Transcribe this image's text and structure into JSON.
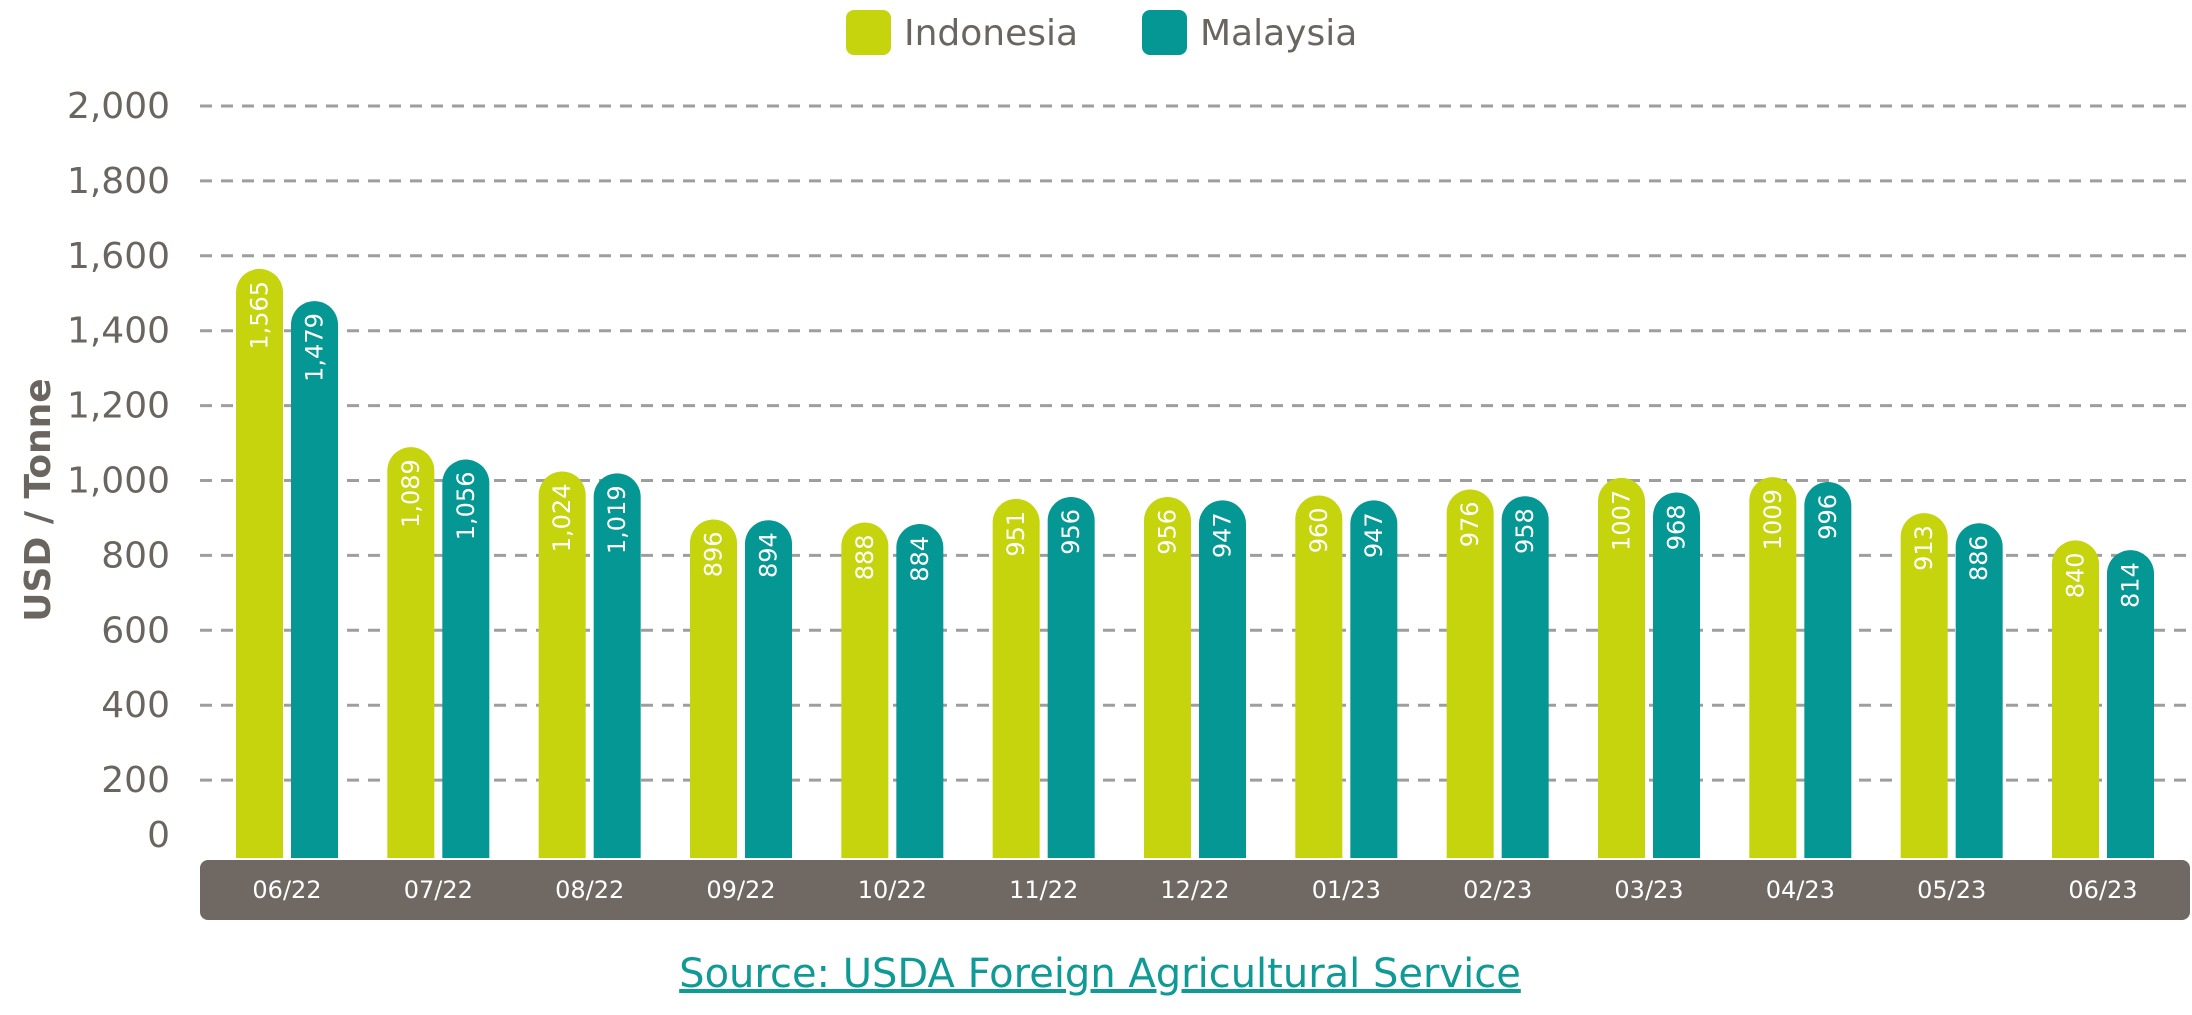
{
  "chart_data": {
    "type": "bar",
    "categories": [
      "06/22",
      "07/22",
      "08/22",
      "09/22",
      "10/22",
      "11/22",
      "12/22",
      "01/23",
      "02/23",
      "03/23",
      "04/23",
      "05/23",
      "06/23"
    ],
    "series": [
      {
        "name": "Indonesia",
        "color": "#c5d40d",
        "values": [
          1565,
          1089,
          1024,
          896,
          888,
          951,
          956,
          960,
          976,
          1007,
          1009,
          913,
          840
        ],
        "labels": [
          "1,565",
          "1,089",
          "1,024",
          "896",
          "888",
          "951",
          "956",
          "960",
          "976",
          "1007",
          "1009",
          "913",
          "840"
        ]
      },
      {
        "name": "Malaysia",
        "color": "#059793",
        "values": [
          1479,
          1056,
          1019,
          894,
          884,
          956,
          947,
          947,
          958,
          968,
          996,
          886,
          814
        ],
        "labels": [
          "1,479",
          "1,056",
          "1,019",
          "894",
          "884",
          "956",
          "947",
          "947",
          "958",
          "968",
          "996",
          "886",
          "814"
        ]
      }
    ],
    "ylabel": "USD / Tonne",
    "ylim": [
      0,
      2000
    ],
    "yticks": [
      0,
      200,
      400,
      600,
      800,
      1000,
      1200,
      1400,
      1600,
      1800,
      2000
    ],
    "ytick_labels": [
      "0",
      "200",
      "400",
      "600",
      "800",
      "1,000",
      "1,200",
      "1,400",
      "1,600",
      "1,800",
      "2,000"
    ],
    "grid": true,
    "legend": "top-center",
    "category_band_color": "#6f6863",
    "grid_color": "#9e9e9e"
  },
  "source": {
    "text": "Source: USDA Foreign Agricultural Service",
    "color": "#0f9a96"
  }
}
